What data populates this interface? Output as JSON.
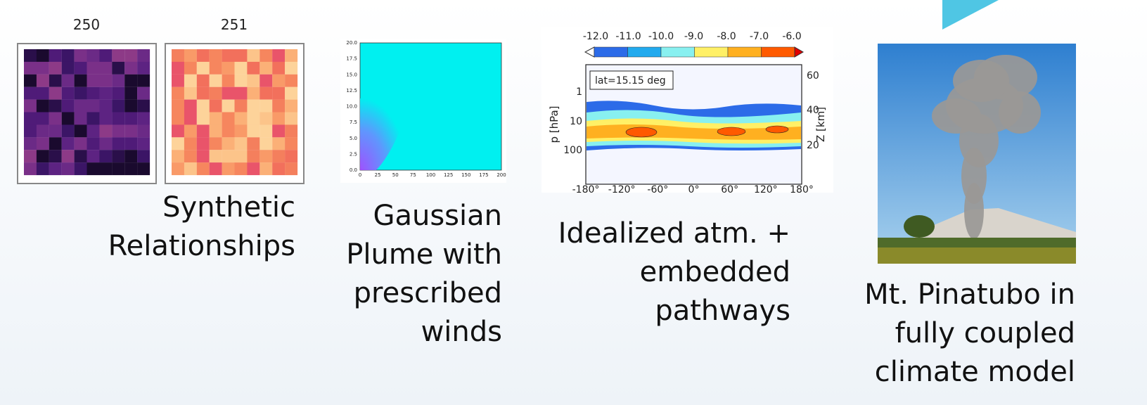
{
  "panels": [
    {
      "heatmap_titles": [
        "250",
        "251"
      ],
      "caption": [
        "Synthetic",
        "Relationships"
      ]
    },
    {
      "xticks": [
        "0",
        "25",
        "50",
        "75",
        "100",
        "125",
        "150",
        "175",
        "200"
      ],
      "yticks": [
        "0.0",
        "2.5",
        "5.0",
        "7.5",
        "10.0",
        "12.5",
        "15.0",
        "17.5",
        "20.0"
      ],
      "caption": [
        "Gaussian",
        "Plume with",
        "prescribed",
        "winds"
      ]
    },
    {
      "colorbar_labels": [
        "-12.0",
        "-11.0",
        "-10.0",
        "-9.0",
        "-8.0",
        "-7.0",
        "-6.0"
      ],
      "annotation": "lat=15.15 deg",
      "ylabel": "p  [hPa]",
      "yticks": [
        "1",
        "10",
        "100"
      ],
      "y2label": "Z [km]",
      "y2ticks": [
        "60",
        "40",
        "20"
      ],
      "xticks": [
        "-180°",
        "-120°",
        "-60°",
        "0°",
        "60°",
        "120°",
        "180°"
      ],
      "caption": [
        "Idealized atm.  +",
        "embedded",
        "pathways"
      ]
    },
    {
      "caption": [
        "Mt. Pinatubo in",
        "fully coupled",
        "climate model"
      ]
    }
  ]
}
